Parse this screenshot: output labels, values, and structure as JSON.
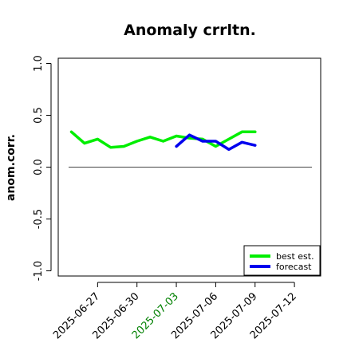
{
  "chart_data": {
    "type": "line",
    "title": "Anomaly crrltn.",
    "ylabel": "anom.corr.",
    "xlabel": "",
    "ylim": [
      -1.05,
      1.05
    ],
    "yticks": [
      "-1.0",
      "-0.5",
      "0.0",
      "0.5",
      "1.0"
    ],
    "ytick_values": [
      -1.0,
      -0.5,
      0.0,
      0.5,
      1.0
    ],
    "xlim": [
      "2025-06-24",
      "2025-07-14"
    ],
    "x_tick_dates": [
      "2025-06-27",
      "2025-06-30",
      "2025-07-03",
      "2025-07-06",
      "2025-07-09",
      "2025-07-12"
    ],
    "x_tick_colors": [
      "#000000",
      "#000000",
      "#008000",
      "#000000",
      "#000000",
      "#000000"
    ],
    "reference_line": 0.0,
    "grid": false,
    "legend_position": "bottom-right",
    "series": [
      {
        "name": "best est.",
        "color": "#00ee00",
        "x": [
          "2025-06-25",
          "2025-06-26",
          "2025-06-27",
          "2025-06-28",
          "2025-06-29",
          "2025-06-30",
          "2025-07-01",
          "2025-07-02",
          "2025-07-03",
          "2025-07-04",
          "2025-07-05",
          "2025-07-06",
          "2025-07-07",
          "2025-07-08",
          "2025-07-09"
        ],
        "values": [
          0.34,
          0.23,
          0.27,
          0.19,
          0.2,
          0.25,
          0.29,
          0.25,
          0.3,
          0.28,
          0.27,
          0.2,
          0.27,
          0.34,
          0.34
        ]
      },
      {
        "name": "forecast",
        "color": "#0000ee",
        "x": [
          "2025-07-03",
          "2025-07-04",
          "2025-07-05",
          "2025-07-06",
          "2025-07-07",
          "2025-07-08",
          "2025-07-09"
        ],
        "values": [
          0.2,
          0.31,
          0.25,
          0.25,
          0.17,
          0.24,
          0.21
        ]
      }
    ]
  }
}
